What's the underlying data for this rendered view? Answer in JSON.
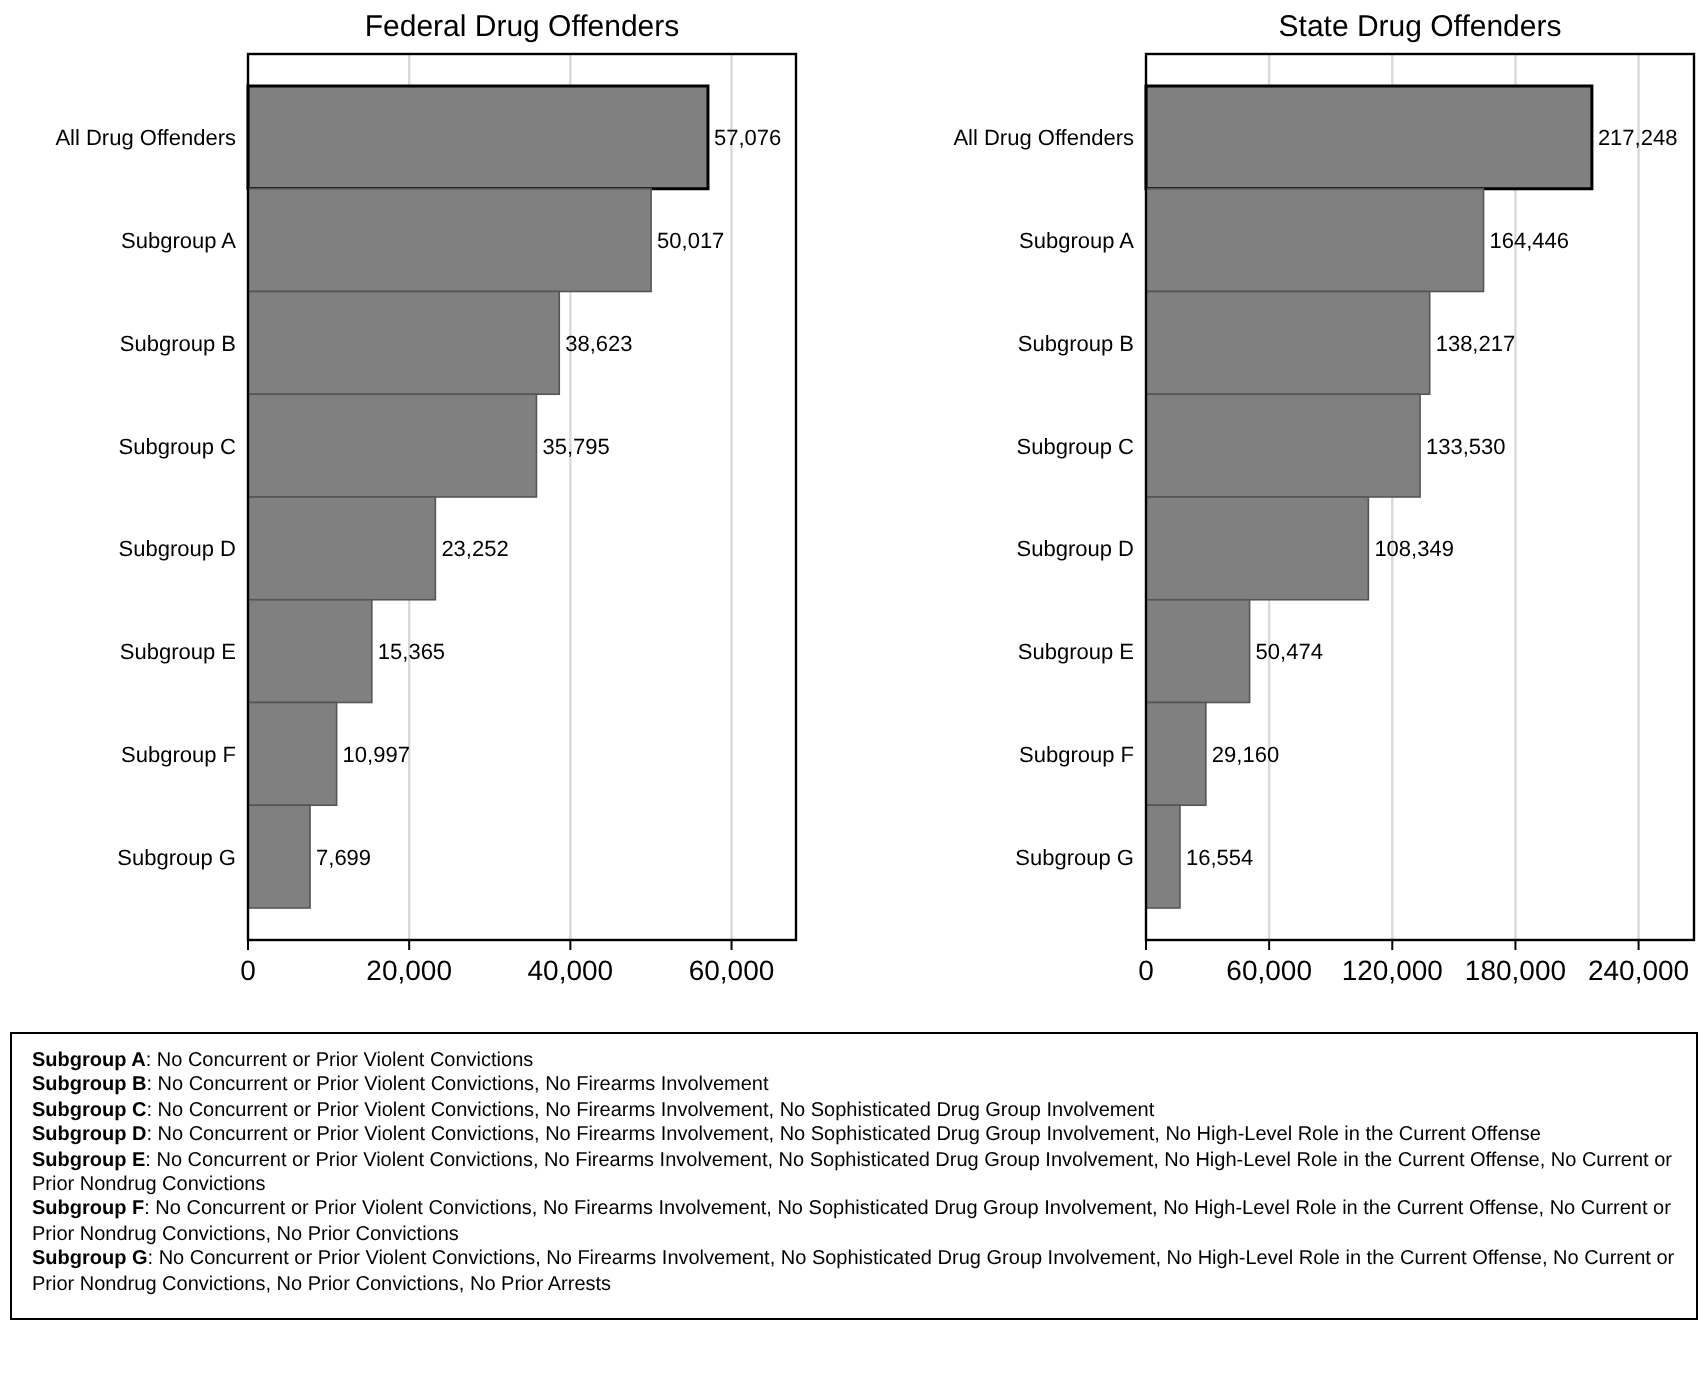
{
  "chart_data": [
    {
      "type": "bar",
      "orientation": "horizontal",
      "title": "Federal Drug Offenders",
      "categories": [
        "All Drug Offenders",
        "Subgroup A",
        "Subgroup B",
        "Subgroup C",
        "Subgroup D",
        "Subgroup E",
        "Subgroup F",
        "Subgroup G"
      ],
      "values": [
        57076,
        50017,
        38623,
        35795,
        23252,
        15365,
        10997,
        7699
      ],
      "value_labels": [
        "57,076",
        "50,017",
        "38,623",
        "35,795",
        "23,252",
        "15,365",
        "10,997",
        "7,699"
      ],
      "color": "#808080",
      "xlim": [
        0,
        68000
      ],
      "xticks": [
        {
          "value": 0,
          "label": "0"
        },
        {
          "value": 20000,
          "label": "20,000"
        },
        {
          "value": 40000,
          "label": "40,000"
        },
        {
          "value": 60000,
          "label": "60,000"
        }
      ],
      "grid": "x",
      "annotations": [
        "Subgroup A: No Concurrent or Prior Violent Convictions",
        "Subgroup B: No Concurrent or Prior Violent Convictions, No Firearms Involvement",
        "Subgroup C: No Concurrent or Prior Violent Convictions, No Firearms Involvement, No Sophisticated Drug Group Involvement",
        "Subgroup D: No Concurrent or Prior Violent Convictions, No Firearms Involvement, No Sophisticated Drug Group Involvement, No High-Level Role in the Current Offense",
        "Subgroup E: No Concurrent or Prior Violent Convictions, No Firearms Involvement, No Sophisticated Drug Group Involvement, No High-Level Role in the Current Offense, No Current or Prior Nondrug Convictions",
        "Subgroup F: No Concurrent or Prior Violent Convictions, No Firearms Involvement, No Sophisticated Drug Group Involvement, No High-Level Role in the Current Offense, No Current or Prior Nondrug Convictions, No Prior Convictions",
        "Subgroup G: No Concurrent or Prior Violent Convictions, No Firearms Involvement, No Sophisticated Drug Group Involvement, No High-Level Role in the Current Offense, No Current or Prior Nondrug Convictions, No Prior Convictions, No Prior Arrests"
      ]
    },
    {
      "type": "bar",
      "orientation": "horizontal",
      "title": "State Drug Offenders",
      "categories": [
        "All Drug Offenders",
        "Subgroup A",
        "Subgroup B",
        "Subgroup C",
        "Subgroup D",
        "Subgroup E",
        "Subgroup F",
        "Subgroup G"
      ],
      "values": [
        217248,
        164446,
        138217,
        133530,
        108349,
        50474,
        29160,
        16554
      ],
      "value_labels": [
        "217,248",
        "164,446",
        "138,217",
        "133,530",
        "108,349",
        "50,474",
        "29,160",
        "16,554"
      ],
      "color": "#808080",
      "xlim": [
        0,
        267000
      ],
      "xticks": [
        {
          "value": 0,
          "label": "0"
        },
        {
          "value": 60000,
          "label": "60,000"
        },
        {
          "value": 120000,
          "label": "120,000"
        },
        {
          "value": 180000,
          "label": "180,000"
        },
        {
          "value": 240000,
          "label": "240,000"
        }
      ],
      "grid": "x"
    }
  ]
}
